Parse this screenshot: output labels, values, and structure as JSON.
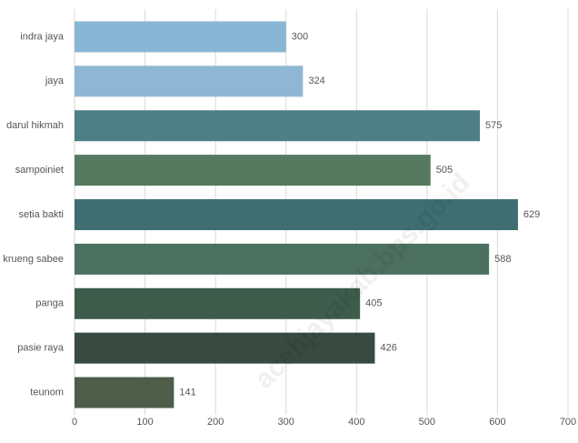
{
  "chart_data": {
    "type": "barh",
    "categories": [
      "indra jaya",
      "jaya",
      "darul hikmah",
      "sampoiniet",
      "setia bakti",
      "krueng sabee",
      "panga",
      "pasie raya",
      "teunom"
    ],
    "values": [
      300,
      324,
      575,
      505,
      629,
      588,
      405,
      426,
      141
    ],
    "colors": [
      "#8ab6d6",
      "#8fb7d3",
      "#4e7f86",
      "#567a5f",
      "#3f6e72",
      "#4c7060",
      "#3d5c4c",
      "#394a40",
      "#4d5d4a"
    ],
    "xlim": [
      0,
      700
    ],
    "xticks": [
      0,
      100,
      200,
      300,
      400,
      500,
      600,
      700
    ],
    "grid": true,
    "watermark": "acehjayakab.bps.go.id"
  }
}
